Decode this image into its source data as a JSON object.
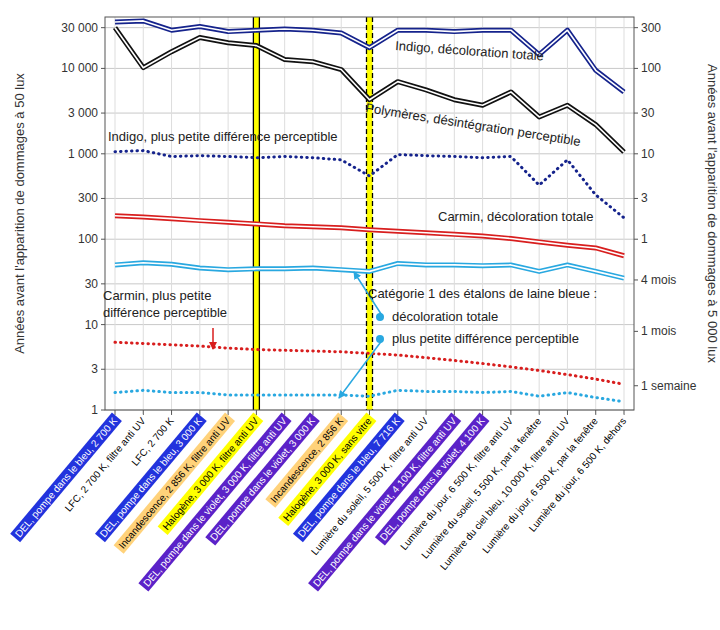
{
  "chart_data": {
    "type": "line",
    "ylabel": "Années avant l'apparition de dommages à 50 lux",
    "y2label": "Années avant l'apparition de dommages à 5 000 lux",
    "log": "y",
    "grid": true,
    "ylim": [
      1,
      40000
    ],
    "yticks": [
      1,
      3,
      10,
      30,
      100,
      300,
      {
        "value": 1000,
        "label": "1 000"
      },
      {
        "value": 3000,
        "label": "3 000"
      },
      {
        "value": 10000,
        "label": "10 000"
      },
      {
        "value": 30000,
        "label": "30 000"
      }
    ],
    "y2lim": [
      0.01,
      400
    ],
    "y2ticks": [
      {
        "value": 0.01923,
        "label": "1 semaine"
      },
      {
        "value": 0.08333,
        "label": "1 mois"
      },
      {
        "value": 0.3333,
        "label": "4 mois"
      },
      1,
      3,
      10,
      30,
      100,
      300
    ],
    "categories": [
      "DEL, pompe dans le bleu, 2 700 K",
      "LFC, 2 700 K, filtre anti UV",
      "LFC, 2 700 K",
      "DEL, pompe dans le bleu, 3 000 K",
      "Incandescence, 2 856 K, filtre anti UV",
      "Halogène, 3 000 K, filtre anti UV",
      "DEL, pompe dans le violet, 3 000 K, filtre anti UV",
      "DEL, pompe dans le violet, 3 000 K",
      "Incandescence, 2 856 K",
      "Halogène, 3 000 K, sans vitre",
      "DEL, pompe dans le bleu, 7 716 K",
      "Lumière du soleil, 5 500 K, filtre anti UV",
      "DEL, pompe dans le violet, 4 100 K, filtre anti UV",
      "DEL, pompe dans le violet, 4 100 K",
      "Lumière du jour, 6 500 K, filtre anti UV",
      "Lumière du soleil, 5 500 K, par la fenêtre",
      "Lumière du ciel bleu, 10 000 K, filtre anti UV",
      "Lumière du jour, 6 500 K, par la fenêtre",
      "Lumière du jour, 6 500 K, dehors"
    ],
    "colors": [
      "#2233dd",
      "#ffffff",
      "#ffffff",
      "#2233dd",
      "#ffd27a",
      "#ffff00",
      "#5b22c8",
      "#5b22c8",
      "#ffd27a",
      "#ffff00",
      "#2233dd",
      "#ffffff",
      "#5b22c8",
      "#5b22c8",
      "#ffffff",
      "#ffffff",
      "#ffffff",
      "#ffffff",
      "#ffffff"
    ],
    "annotations": [
      {
        "text": "Catégorie 1 des étalons de laine bleue :"
      }
    ],
    "series": [
      {
        "name": "Indigo, décoloration totale",
        "color": "#15238c",
        "line_style": "double",
        "values": [
          35000,
          36000,
          28000,
          31000,
          27000,
          28000,
          29000,
          28000,
          26000,
          17500,
          28000,
          28000,
          27000,
          28000,
          28000,
          14500,
          28000,
          9500,
          5300
        ]
      },
      {
        "name": "Polymères, désintégration perceptible",
        "color": "#111111",
        "line_style": "double",
        "values": [
          30000,
          10200,
          15700,
          23000,
          20000,
          18500,
          12700,
          12000,
          9700,
          4300,
          7000,
          5600,
          4300,
          3700,
          5300,
          2700,
          3700,
          2200,
          1050
        ]
      },
      {
        "name": "Indigo, plus petite différence perceptible",
        "color": "#15238c",
        "line_style": "dotted",
        "values": [
          1060,
          1090,
          930,
          950,
          930,
          900,
          930,
          900,
          850,
          550,
          980,
          950,
          930,
          900,
          930,
          430,
          850,
          330,
          178
        ]
      },
      {
        "name": "Carmin, décoloration totale",
        "color": "#d81e1e",
        "line_style": "double",
        "values": [
          188,
          182,
          174,
          165,
          158,
          151,
          144,
          140,
          136,
          129,
          124,
          119,
          114,
          109,
          102,
          93,
          85,
          79,
          64
        ]
      },
      {
        "name": "décoloration totale",
        "color": "#29a8e0",
        "line_style": "double",
        "values": [
          50,
          53,
          51,
          46,
          44,
          45,
          45,
          46,
          44,
          42,
          52,
          50,
          50,
          49,
          50,
          42,
          50,
          42,
          35
        ]
      },
      {
        "name": "Carmin, plus petite différence perceptible",
        "color": "#d81e1e",
        "line_style": "dotted",
        "values": [
          6.2,
          6.0,
          5.8,
          5.6,
          5.3,
          5.1,
          5.0,
          4.9,
          4.8,
          4.6,
          4.4,
          4.1,
          3.8,
          3.5,
          3.2,
          2.9,
          2.6,
          2.3,
          2.0
        ]
      },
      {
        "name": "plus petite différence perceptible",
        "color": "#29a8e0",
        "line_style": "dotted",
        "values": [
          1.6,
          1.7,
          1.6,
          1.6,
          1.5,
          1.5,
          1.5,
          1.5,
          1.5,
          1.45,
          1.7,
          1.65,
          1.65,
          1.6,
          1.65,
          1.45,
          1.6,
          1.4,
          1.25
        ]
      }
    ]
  }
}
